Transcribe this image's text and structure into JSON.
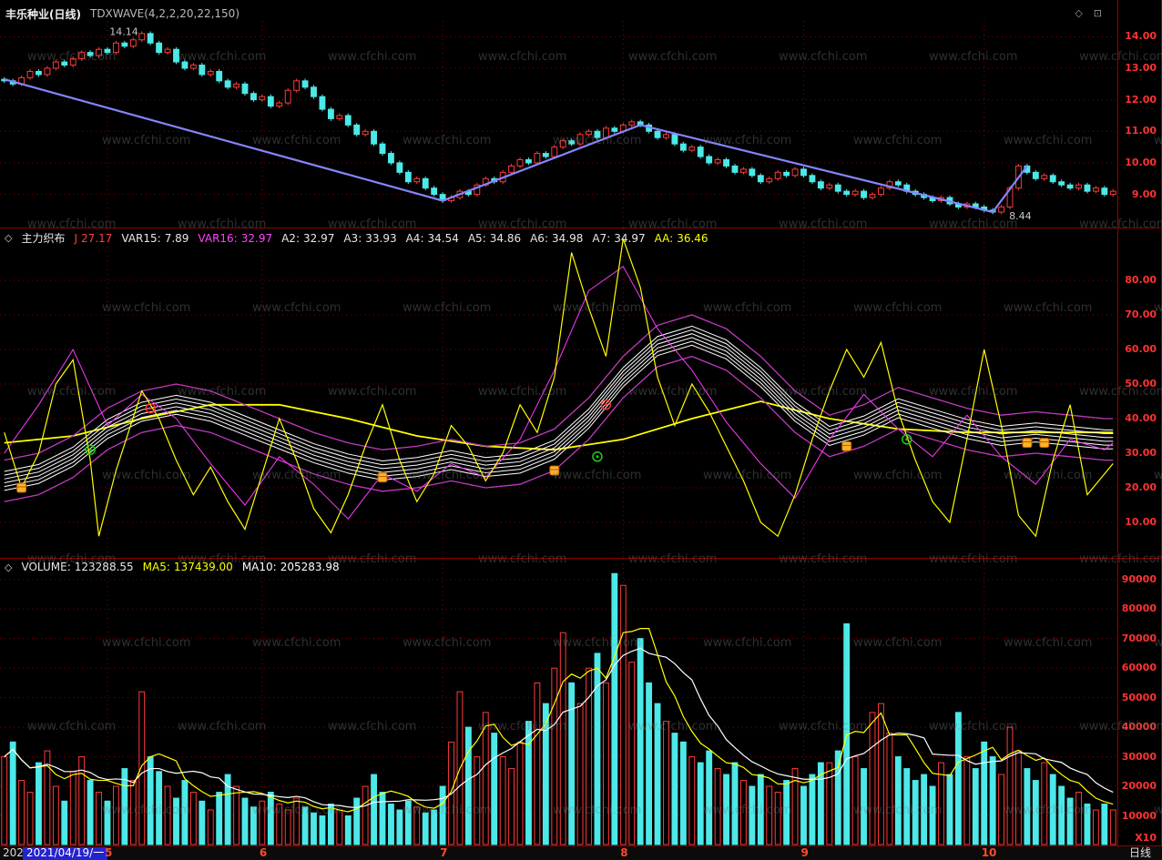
{
  "titlebar": {
    "symbol_title": "丰乐种业(日线)",
    "indicator_label": "TDXWAVE(4,2,2,20,22,150)",
    "icons": {
      "diamond": "◇",
      "window": "⊡"
    }
  },
  "watermark": {
    "text": "www.cfchi.com"
  },
  "x_axis": {
    "months": [
      {
        "label": "5",
        "day": 12
      },
      {
        "label": "6",
        "day": 30
      },
      {
        "label": "7",
        "day": 51
      },
      {
        "label": "8",
        "day": 72
      },
      {
        "label": "9",
        "day": 93
      },
      {
        "label": "10",
        "day": 114
      }
    ]
  },
  "panels": {
    "indicator": {
      "icon": "◇",
      "header": [
        {
          "label": "主力织布",
          "value": "",
          "color": "#e8e8e8"
        },
        {
          "label": "J",
          "value": "27.17",
          "color": "#ff4040"
        },
        {
          "label": "VAR15:",
          "value": "7.89",
          "color": "#e8e8e8"
        },
        {
          "label": "VAR16:",
          "value": "32.97",
          "color": "#ff40ff"
        },
        {
          "label": "A2:",
          "value": "32.97",
          "color": "#e8e8e8"
        },
        {
          "label": "A3:",
          "value": "33.93",
          "color": "#e8e8e8"
        },
        {
          "label": "A4:",
          "value": "34.54",
          "color": "#e8e8e8"
        },
        {
          "label": "A5:",
          "value": "34.86",
          "color": "#e8e8e8"
        },
        {
          "label": "A6:",
          "value": "34.98",
          "color": "#e8e8e8"
        },
        {
          "label": "A7:",
          "value": "34.97",
          "color": "#e8e8e8"
        },
        {
          "label": "AA:",
          "value": "36.46",
          "color": "#ffff00"
        }
      ]
    },
    "volume": {
      "icon": "◇",
      "header": [
        {
          "label": "VOLUME:",
          "value": "123288.55",
          "color": "#e8e8e8"
        },
        {
          "label": "MA5:",
          "value": "137439.00",
          "color": "#ffff00"
        },
        {
          "label": "MA10:",
          "value": "205283.98",
          "color": "#ffffff"
        }
      ]
    }
  },
  "statusbar": {
    "date_prefix": "202",
    "date": "2021/04/19/一",
    "period": "日线"
  },
  "chart_data": [
    {
      "type": "candlestick",
      "title": "丰乐种业(日线)",
      "indicator": "TDXWAVE(4,2,2,20,22,150)",
      "ylim": [
        7.95,
        14.5
      ],
      "yticks": [
        14,
        13,
        12,
        11,
        10,
        9
      ],
      "ytick_labels": [
        "14.00",
        "13.00",
        "12.00",
        "11.00",
        "10.00",
        "9.00"
      ],
      "up_color": "#ff3a3a",
      "down_color": "#4de8e8",
      "closes": [
        12.6,
        12.5,
        12.7,
        12.9,
        12.8,
        13.0,
        13.2,
        13.1,
        13.3,
        13.5,
        13.4,
        13.6,
        13.5,
        13.8,
        13.7,
        13.9,
        14.1,
        13.8,
        13.5,
        13.6,
        13.2,
        13.0,
        13.1,
        12.8,
        12.9,
        12.6,
        12.4,
        12.5,
        12.2,
        12.0,
        12.1,
        11.8,
        11.9,
        12.3,
        12.6,
        12.4,
        12.1,
        11.7,
        11.4,
        11.5,
        11.2,
        10.9,
        11.0,
        10.6,
        10.3,
        10.0,
        9.7,
        9.4,
        9.5,
        9.2,
        9.0,
        8.8,
        8.9,
        9.1,
        9.0,
        9.3,
        9.5,
        9.4,
        9.7,
        9.9,
        10.1,
        10.0,
        10.3,
        10.2,
        10.5,
        10.7,
        10.6,
        10.9,
        11.0,
        10.8,
        11.1,
        11.0,
        11.2,
        11.3,
        11.2,
        11.0,
        10.8,
        10.9,
        10.6,
        10.4,
        10.5,
        10.2,
        10.0,
        10.1,
        9.9,
        9.7,
        9.8,
        9.6,
        9.4,
        9.5,
        9.7,
        9.6,
        9.8,
        9.6,
        9.4,
        9.2,
        9.3,
        9.1,
        9.0,
        9.1,
        8.9,
        9.0,
        9.2,
        9.4,
        9.3,
        9.1,
        9.0,
        8.9,
        8.8,
        8.9,
        8.7,
        8.6,
        8.7,
        8.6,
        8.5,
        8.44,
        8.6,
        9.2,
        9.9,
        9.7,
        9.5,
        9.6,
        9.4,
        9.3,
        9.2,
        9.3,
        9.1,
        9.2,
        9.0,
        9.1
      ],
      "wave_line": {
        "name": "TDXWAVE",
        "color": "#8585ff",
        "points": [
          [
            0,
            12.65
          ],
          [
            51,
            8.8
          ],
          [
            74,
            11.2
          ],
          [
            115,
            8.44
          ],
          [
            119,
            9.9
          ]
        ]
      },
      "annotations": [
        {
          "day": 16,
          "value": 14.14,
          "text": "14.14",
          "anchor": "end"
        },
        {
          "day": 115,
          "value": 8.44,
          "text": "8.44",
          "anchor": "start"
        }
      ]
    },
    {
      "type": "line",
      "title": "主力织布",
      "ylim": [
        0,
        95
      ],
      "yticks": [
        80,
        70,
        60,
        50,
        40,
        30,
        20,
        10
      ],
      "ytick_labels": [
        "80.00",
        "70.00",
        "60.00",
        "50.00",
        "40.00",
        "30.00",
        "20.00",
        "10.00"
      ],
      "series": [
        {
          "name": "AA",
          "color": "#ffff00",
          "width": 1.8,
          "points": [
            [
              0,
              33
            ],
            [
              8,
              35
            ],
            [
              16,
              40
            ],
            [
              24,
              44
            ],
            [
              32,
              44
            ],
            [
              40,
              40
            ],
            [
              48,
              35
            ],
            [
              56,
              32
            ],
            [
              64,
              31
            ],
            [
              72,
              34
            ],
            [
              80,
              40
            ],
            [
              88,
              45
            ],
            [
              96,
              40
            ],
            [
              104,
              37
            ],
            [
              112,
              36
            ],
            [
              120,
              36
            ],
            [
              129,
              36
            ]
          ]
        },
        {
          "name": "envelope",
          "color": "#c03ac0",
          "width": 1.3,
          "points_ref": "ribbon",
          "offsets": [
            -6,
            6
          ]
        },
        {
          "name": "ribbon",
          "color": "#ffffff",
          "width": 1,
          "ribbon": 6,
          "spread": 1.1,
          "points": [
            [
              0,
              22
            ],
            [
              4,
              24
            ],
            [
              8,
              29
            ],
            [
              12,
              37
            ],
            [
              16,
              42
            ],
            [
              20,
              44
            ],
            [
              24,
              42
            ],
            [
              28,
              38
            ],
            [
              32,
              34
            ],
            [
              36,
              30
            ],
            [
              40,
              27
            ],
            [
              44,
              25
            ],
            [
              48,
              26
            ],
            [
              52,
              28
            ],
            [
              56,
              26
            ],
            [
              60,
              27
            ],
            [
              64,
              31
            ],
            [
              68,
              40
            ],
            [
              72,
              52
            ],
            [
              76,
              61
            ],
            [
              80,
              64
            ],
            [
              84,
              60
            ],
            [
              88,
              52
            ],
            [
              92,
              42
            ],
            [
              96,
              35
            ],
            [
              100,
              38
            ],
            [
              104,
              43
            ],
            [
              108,
              40
            ],
            [
              112,
              37
            ],
            [
              116,
              35
            ],
            [
              120,
              36
            ],
            [
              124,
              35
            ],
            [
              128,
              34
            ],
            [
              129,
              34
            ]
          ]
        },
        {
          "name": "VAR16",
          "color": "#ff3aff",
          "width": 1,
          "points": [
            [
              0,
              30
            ],
            [
              4,
              44
            ],
            [
              8,
              60
            ],
            [
              12,
              38
            ],
            [
              16,
              47
            ],
            [
              20,
              40
            ],
            [
              24,
              27
            ],
            [
              28,
              15
            ],
            [
              32,
              29
            ],
            [
              36,
              21
            ],
            [
              40,
              11
            ],
            [
              44,
              24
            ],
            [
              48,
              19
            ],
            [
              52,
              27
            ],
            [
              56,
              23
            ],
            [
              60,
              34
            ],
            [
              64,
              54
            ],
            [
              68,
              77
            ],
            [
              72,
              84
            ],
            [
              76,
              66
            ],
            [
              80,
              54
            ],
            [
              84,
              39
            ],
            [
              88,
              27
            ],
            [
              92,
              17
            ],
            [
              96,
              34
            ],
            [
              100,
              47
            ],
            [
              104,
              37
            ],
            [
              108,
              29
            ],
            [
              112,
              41
            ],
            [
              116,
              29
            ],
            [
              120,
              21
            ],
            [
              124,
              34
            ],
            [
              128,
              31
            ],
            [
              129,
              33
            ]
          ]
        },
        {
          "name": "J",
          "color": "#ffff00",
          "width": 1.2,
          "points": [
            [
              0,
              36
            ],
            [
              2,
              20
            ],
            [
              4,
              30
            ],
            [
              6,
              50
            ],
            [
              8,
              57
            ],
            [
              10,
              28
            ],
            [
              11,
              6
            ],
            [
              13,
              25
            ],
            [
              16,
              48
            ],
            [
              18,
              40
            ],
            [
              20,
              28
            ],
            [
              22,
              18
            ],
            [
              24,
              26
            ],
            [
              26,
              16
            ],
            [
              28,
              8
            ],
            [
              30,
              24
            ],
            [
              32,
              40
            ],
            [
              34,
              28
            ],
            [
              36,
              14
            ],
            [
              38,
              7
            ],
            [
              40,
              18
            ],
            [
              42,
              32
            ],
            [
              44,
              44
            ],
            [
              46,
              28
            ],
            [
              48,
              16
            ],
            [
              50,
              24
            ],
            [
              52,
              38
            ],
            [
              54,
              32
            ],
            [
              56,
              22
            ],
            [
              58,
              30
            ],
            [
              60,
              44
            ],
            [
              62,
              36
            ],
            [
              64,
              52
            ],
            [
              66,
              88
            ],
            [
              68,
              72
            ],
            [
              70,
              58
            ],
            [
              72,
              92
            ],
            [
              74,
              78
            ],
            [
              76,
              52
            ],
            [
              78,
              38
            ],
            [
              80,
              50
            ],
            [
              82,
              42
            ],
            [
              84,
              32
            ],
            [
              86,
              22
            ],
            [
              88,
              10
            ],
            [
              90,
              6
            ],
            [
              92,
              18
            ],
            [
              94,
              34
            ],
            [
              96,
              48
            ],
            [
              98,
              60
            ],
            [
              100,
              52
            ],
            [
              102,
              62
            ],
            [
              104,
              42
            ],
            [
              106,
              28
            ],
            [
              108,
              16
            ],
            [
              110,
              10
            ],
            [
              112,
              34
            ],
            [
              114,
              60
            ],
            [
              116,
              38
            ],
            [
              118,
              12
            ],
            [
              120,
              6
            ],
            [
              122,
              28
            ],
            [
              124,
              44
            ],
            [
              126,
              18
            ],
            [
              128,
              24
            ],
            [
              129,
              27
            ]
          ]
        }
      ],
      "markers": [
        {
          "type": "bag",
          "color": "#f7b32a",
          "points": [
            [
              2,
              20
            ],
            [
              44,
              23
            ],
            [
              64,
              25
            ],
            [
              98,
              32
            ],
            [
              119,
              33
            ],
            [
              121,
              33
            ]
          ]
        },
        {
          "type": "green-circle",
          "color": "#17cf17",
          "points": [
            [
              10,
              31
            ],
            [
              69,
              29
            ],
            [
              105,
              34
            ]
          ]
        },
        {
          "type": "red-circle",
          "color": "#ff3030",
          "points": [
            [
              17,
              43
            ],
            [
              70,
              44
            ]
          ]
        }
      ]
    },
    {
      "type": "bar",
      "title": "VOLUME",
      "ylim": [
        0,
        97000
      ],
      "yticks": [
        90000,
        80000,
        70000,
        60000,
        50000,
        40000,
        30000,
        20000,
        10000
      ],
      "ytick_labels": [
        "90000",
        "80000",
        "70000",
        "60000",
        "50000",
        "40000",
        "30000",
        "20000",
        "10000"
      ],
      "unit_label": "X10",
      "up_color": "#ff3a3a",
      "down_color": "#4de8e8",
      "values": [
        30000,
        35000,
        22000,
        18000,
        28000,
        32000,
        20000,
        15000,
        25000,
        30000,
        22000,
        18000,
        15000,
        20000,
        26000,
        22000,
        52000,
        30000,
        25000,
        20000,
        16000,
        22000,
        18000,
        15000,
        12000,
        18000,
        24000,
        20000,
        16000,
        13000,
        15000,
        18000,
        14000,
        12000,
        16000,
        13000,
        11000,
        10000,
        14000,
        12000,
        10000,
        16000,
        20000,
        24000,
        18000,
        14000,
        12000,
        15000,
        13000,
        11000,
        12000,
        20000,
        35000,
        52000,
        40000,
        30000,
        45000,
        38000,
        30000,
        26000,
        35000,
        42000,
        55000,
        48000,
        60000,
        72000,
        55000,
        48000,
        60000,
        65000,
        55000,
        92000,
        88000,
        62000,
        70000,
        55000,
        48000,
        42000,
        38000,
        35000,
        30000,
        28000,
        32000,
        26000,
        24000,
        28000,
        22000,
        20000,
        24000,
        20000,
        18000,
        22000,
        26000,
        20000,
        24000,
        28000,
        28000,
        32000,
        75000,
        30000,
        26000,
        45000,
        48000,
        38000,
        30000,
        26000,
        22000,
        24000,
        20000,
        28000,
        24000,
        45000,
        30000,
        26000,
        35000,
        30000,
        24000,
        40000,
        32000,
        26000,
        22000,
        28000,
        24000,
        20000,
        16000,
        18000,
        14000,
        12000,
        14000,
        12000
      ],
      "ma": [
        {
          "name": "MA5",
          "window": 5,
          "color": "#ffff00"
        },
        {
          "name": "MA10",
          "window": 10,
          "color": "#ffffff"
        }
      ]
    }
  ]
}
